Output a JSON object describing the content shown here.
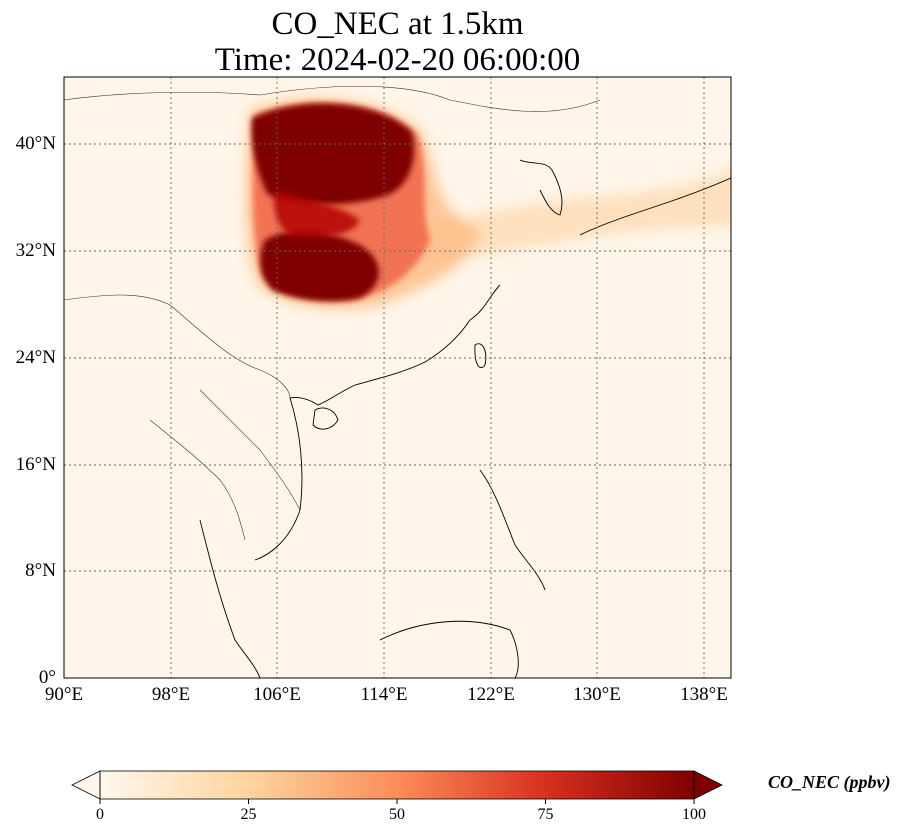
{
  "title": {
    "line1": "CO_NEC at 1.5km",
    "line2": "Time: 2024-02-20 06:00:00"
  },
  "map": {
    "lon_range": [
      90,
      140
    ],
    "lat_range": [
      0,
      45
    ],
    "gridlines": "dotted",
    "lat_ticks": [
      "40°N",
      "32°N",
      "24°N",
      "16°N",
      "8°N",
      "0°"
    ],
    "lon_ticks": [
      "90°E",
      "98°E",
      "106°E",
      "114°E",
      "122°E",
      "130°E",
      "138°E"
    ]
  },
  "colorbar": {
    "label": "CO_NEC (ppbv)",
    "colormap": "OrRd",
    "range": [
      0,
      100
    ],
    "extend": "both",
    "ticks": [
      "0",
      "25",
      "50",
      "75",
      "100"
    ],
    "colors": [
      "#fff7ec",
      "#fdd49e",
      "#fc8d59",
      "#d7301f",
      "#7f0000"
    ]
  },
  "plume": {
    "description_colors": {
      "max": "#7f0000",
      "high": "#b30000",
      "mid": "#ef6548",
      "low": "#fdbb84",
      "background": "#fff5e8"
    }
  }
}
